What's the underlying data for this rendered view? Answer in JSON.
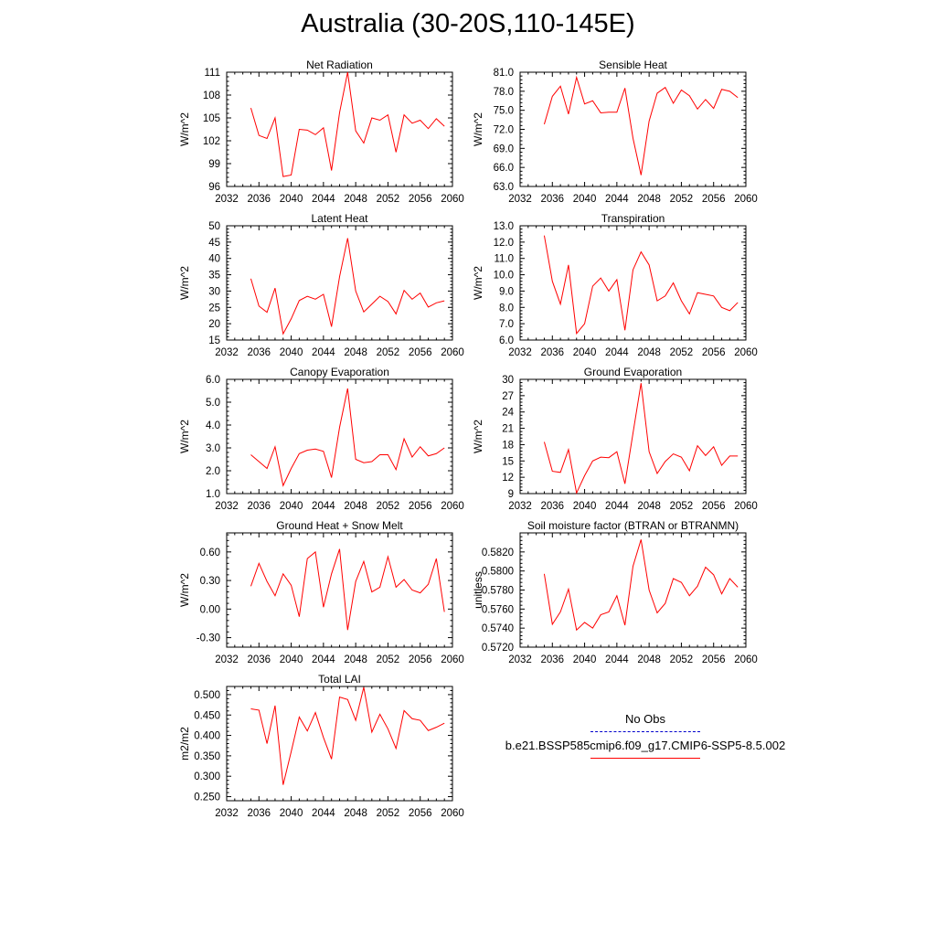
{
  "title": "Australia (30-20S,110-145E)",
  "legend": {
    "obs_label": "No Obs",
    "obs_color": "#0000cc",
    "model_label": "b.e21.BSSP585cmip6.f09_g17.CMIP6-SSP5-8.5.002",
    "model_color": "#ff0000"
  },
  "chart_data": [
    {
      "type": "line",
      "title": "Net Radiation",
      "ylabel": "W/m^2",
      "xlim": [
        2032,
        2060
      ],
      "ylim": [
        96,
        111
      ],
      "xticks": [
        "2032",
        "2036",
        "2040",
        "2044",
        "2048",
        "2052",
        "2056",
        "2060"
      ],
      "yticks": [
        "96",
        "99",
        "102",
        "105",
        "108",
        "111"
      ],
      "x": [
        2035,
        2036,
        2037,
        2038,
        2039,
        2040,
        2041,
        2042,
        2043,
        2044,
        2045,
        2046,
        2047,
        2048,
        2049,
        2050,
        2051,
        2052,
        2053,
        2054,
        2055,
        2056,
        2057,
        2058,
        2059
      ],
      "series": [
        {
          "values": [
            106.3,
            102.7,
            102.3,
            105.0,
            97.3,
            97.5,
            103.5,
            103.4,
            102.8,
            103.7,
            98.1,
            105.7,
            111.0,
            103.3,
            101.7,
            105.0,
            104.7,
            105.4,
            100.5,
            105.4,
            104.3,
            104.7,
            103.6,
            104.9,
            103.9
          ]
        }
      ]
    },
    {
      "type": "line",
      "title": "Sensible Heat",
      "ylabel": "W/m^2",
      "xlim": [
        2032,
        2060
      ],
      "ylim": [
        63,
        81
      ],
      "xticks": [
        "2032",
        "2036",
        "2040",
        "2044",
        "2048",
        "2052",
        "2056",
        "2060"
      ],
      "yticks": [
        "63.0",
        "66.0",
        "69.0",
        "72.0",
        "75.0",
        "78.0",
        "81.0"
      ],
      "x": [
        2035,
        2036,
        2037,
        2038,
        2039,
        2040,
        2041,
        2042,
        2043,
        2044,
        2045,
        2046,
        2047,
        2048,
        2049,
        2050,
        2051,
        2052,
        2053,
        2054,
        2055,
        2056,
        2057,
        2058,
        2059
      ],
      "series": [
        {
          "values": [
            72.8,
            77.2,
            78.8,
            74.4,
            80.2,
            76.0,
            76.5,
            74.6,
            74.7,
            74.7,
            78.5,
            70.6,
            64.8,
            73.3,
            77.7,
            78.6,
            76.1,
            78.2,
            77.3,
            75.2,
            76.7,
            75.3,
            78.3,
            78.0,
            77.0
          ]
        }
      ]
    },
    {
      "type": "line",
      "title": "Latent Heat",
      "ylabel": "W/m^2",
      "xlim": [
        2032,
        2060
      ],
      "ylim": [
        15,
        50
      ],
      "xticks": [
        "2032",
        "2036",
        "2040",
        "2044",
        "2048",
        "2052",
        "2056",
        "2060"
      ],
      "yticks": [
        "15",
        "20",
        "25",
        "30",
        "35",
        "40",
        "45",
        "50"
      ],
      "x": [
        2035,
        2036,
        2037,
        2038,
        2039,
        2040,
        2041,
        2042,
        2043,
        2044,
        2045,
        2046,
        2047,
        2048,
        2049,
        2050,
        2051,
        2052,
        2053,
        2054,
        2055,
        2056,
        2057,
        2058,
        2059
      ],
      "series": [
        {
          "values": [
            33.8,
            25.4,
            23.5,
            30.9,
            16.9,
            21.5,
            27.1,
            28.4,
            27.5,
            29.0,
            19.1,
            34.4,
            46.2,
            30.0,
            23.6,
            26.0,
            28.4,
            26.8,
            23.0,
            30.2,
            27.5,
            29.4,
            25.1,
            26.4,
            27.0
          ]
        }
      ]
    },
    {
      "type": "line",
      "title": "Transpiration",
      "ylabel": "W/m^2",
      "xlim": [
        2032,
        2060
      ],
      "ylim": [
        6,
        13
      ],
      "xticks": [
        "2032",
        "2036",
        "2040",
        "2044",
        "2048",
        "2052",
        "2056",
        "2060"
      ],
      "yticks": [
        "6.0",
        "7.0",
        "8.0",
        "9.0",
        "10.0",
        "11.0",
        "12.0",
        "13.0"
      ],
      "x": [
        2035,
        2036,
        2037,
        2038,
        2039,
        2040,
        2041,
        2042,
        2043,
        2044,
        2045,
        2046,
        2047,
        2048,
        2049,
        2050,
        2051,
        2052,
        2053,
        2054,
        2055,
        2056,
        2057,
        2058,
        2059
      ],
      "series": [
        {
          "values": [
            12.4,
            9.6,
            8.2,
            10.6,
            6.4,
            7.0,
            9.3,
            9.8,
            9.0,
            9.7,
            6.6,
            10.3,
            11.4,
            10.6,
            8.4,
            8.7,
            9.5,
            8.4,
            7.6,
            8.9,
            8.8,
            8.7,
            8.0,
            7.8,
            8.3
          ]
        }
      ]
    },
    {
      "type": "line",
      "title": "Canopy Evaporation",
      "ylabel": "W/m^2",
      "xlim": [
        2032,
        2060
      ],
      "ylim": [
        1,
        6
      ],
      "xticks": [
        "2032",
        "2036",
        "2040",
        "2044",
        "2048",
        "2052",
        "2056",
        "2060"
      ],
      "yticks": [
        "1.0",
        "2.0",
        "3.0",
        "4.0",
        "5.0",
        "6.0"
      ],
      "x": [
        2035,
        2036,
        2037,
        2038,
        2039,
        2040,
        2041,
        2042,
        2043,
        2044,
        2045,
        2046,
        2047,
        2048,
        2049,
        2050,
        2051,
        2052,
        2053,
        2054,
        2055,
        2056,
        2057,
        2058,
        2059
      ],
      "series": [
        {
          "values": [
            2.7,
            2.4,
            2.1,
            3.05,
            1.35,
            2.1,
            2.75,
            2.9,
            2.95,
            2.85,
            1.7,
            3.9,
            5.6,
            2.5,
            2.35,
            2.4,
            2.7,
            2.7,
            2.05,
            3.4,
            2.6,
            3.05,
            2.65,
            2.75,
            3.0
          ]
        }
      ]
    },
    {
      "type": "line",
      "title": "Ground Evaporation",
      "ylabel": "W/m^2",
      "xlim": [
        2032,
        2060
      ],
      "ylim": [
        9,
        30
      ],
      "xticks": [
        "2032",
        "2036",
        "2040",
        "2044",
        "2048",
        "2052",
        "2056",
        "2060"
      ],
      "yticks": [
        "9",
        "12",
        "15",
        "18",
        "21",
        "24",
        "27",
        "30"
      ],
      "x": [
        2035,
        2036,
        2037,
        2038,
        2039,
        2040,
        2041,
        2042,
        2043,
        2044,
        2045,
        2046,
        2047,
        2048,
        2049,
        2050,
        2051,
        2052,
        2053,
        2054,
        2055,
        2056,
        2057,
        2058,
        2059
      ],
      "series": [
        {
          "values": [
            18.5,
            13.1,
            12.9,
            17.1,
            9.1,
            12.3,
            15.0,
            15.7,
            15.6,
            16.7,
            10.8,
            20.1,
            29.3,
            16.7,
            12.7,
            14.9,
            16.3,
            15.7,
            13.2,
            17.8,
            16.0,
            17.6,
            14.2,
            15.9,
            15.9
          ]
        }
      ]
    },
    {
      "type": "line",
      "title": "Ground Heat + Snow Melt",
      "ylabel": "W/m^2",
      "xlim": [
        2032,
        2060
      ],
      "ylim": [
        -0.4,
        0.8
      ],
      "xticks": [
        "2032",
        "2036",
        "2040",
        "2044",
        "2048",
        "2052",
        "2056",
        "2060"
      ],
      "yticks": [
        "-0.30",
        "0.00",
        "0.30",
        "0.60"
      ],
      "yticks_values": [
        -0.3,
        0.0,
        0.3,
        0.6
      ],
      "x": [
        2035,
        2036,
        2037,
        2038,
        2039,
        2040,
        2041,
        2042,
        2043,
        2044,
        2045,
        2046,
        2047,
        2048,
        2049,
        2050,
        2051,
        2052,
        2053,
        2054,
        2055,
        2056,
        2057,
        2058,
        2059
      ],
      "series": [
        {
          "values": [
            0.24,
            0.48,
            0.29,
            0.14,
            0.37,
            0.25,
            -0.08,
            0.53,
            0.6,
            0.02,
            0.37,
            0.63,
            -0.22,
            0.29,
            0.5,
            0.18,
            0.23,
            0.55,
            0.23,
            0.31,
            0.2,
            0.17,
            0.26,
            0.53,
            -0.03
          ]
        }
      ]
    },
    {
      "type": "line",
      "title": "Soil moisture factor (BTRAN or BTRANMN)",
      "ylabel": "unitless",
      "xlim": [
        2032,
        2060
      ],
      "ylim": [
        0.572,
        0.584
      ],
      "xticks": [
        "2032",
        "2036",
        "2040",
        "2044",
        "2048",
        "2052",
        "2056",
        "2060"
      ],
      "yticks": [
        "0.5720",
        "0.5740",
        "0.5760",
        "0.5780",
        "0.5800",
        "0.5820"
      ],
      "x": [
        2035,
        2036,
        2037,
        2038,
        2039,
        2040,
        2041,
        2042,
        2043,
        2044,
        2045,
        2046,
        2047,
        2048,
        2049,
        2050,
        2051,
        2052,
        2053,
        2054,
        2055,
        2056,
        2057,
        2058,
        2059
      ],
      "series": [
        {
          "values": [
            0.5797,
            0.5744,
            0.5757,
            0.5781,
            0.5738,
            0.5746,
            0.574,
            0.5754,
            0.5757,
            0.5774,
            0.5743,
            0.5805,
            0.5833,
            0.578,
            0.5756,
            0.5766,
            0.5792,
            0.5788,
            0.5774,
            0.5784,
            0.5804,
            0.5796,
            0.5776,
            0.5792,
            0.5783
          ]
        }
      ]
    },
    {
      "type": "line",
      "title": "Total LAI",
      "ylabel": "m2/m2",
      "xlim": [
        2032,
        2060
      ],
      "ylim": [
        0.24,
        0.52
      ],
      "xticks": [
        "2032",
        "2036",
        "2040",
        "2044",
        "2048",
        "2052",
        "2056",
        "2060"
      ],
      "yticks": [
        "0.250",
        "0.300",
        "0.350",
        "0.400",
        "0.450",
        "0.500"
      ],
      "yticks_values": [
        0.25,
        0.3,
        0.35,
        0.4,
        0.45,
        0.5
      ],
      "x": [
        2035,
        2036,
        2037,
        2038,
        2039,
        2040,
        2041,
        2042,
        2043,
        2044,
        2045,
        2046,
        2047,
        2048,
        2049,
        2050,
        2051,
        2052,
        2053,
        2054,
        2055,
        2056,
        2057,
        2058,
        2059
      ],
      "series": [
        {
          "values": [
            0.465,
            0.462,
            0.38,
            0.473,
            0.279,
            0.36,
            0.445,
            0.411,
            0.456,
            0.395,
            0.342,
            0.494,
            0.488,
            0.437,
            0.518,
            0.408,
            0.452,
            0.416,
            0.368,
            0.461,
            0.441,
            0.437,
            0.412,
            0.42,
            0.43
          ]
        }
      ]
    }
  ]
}
